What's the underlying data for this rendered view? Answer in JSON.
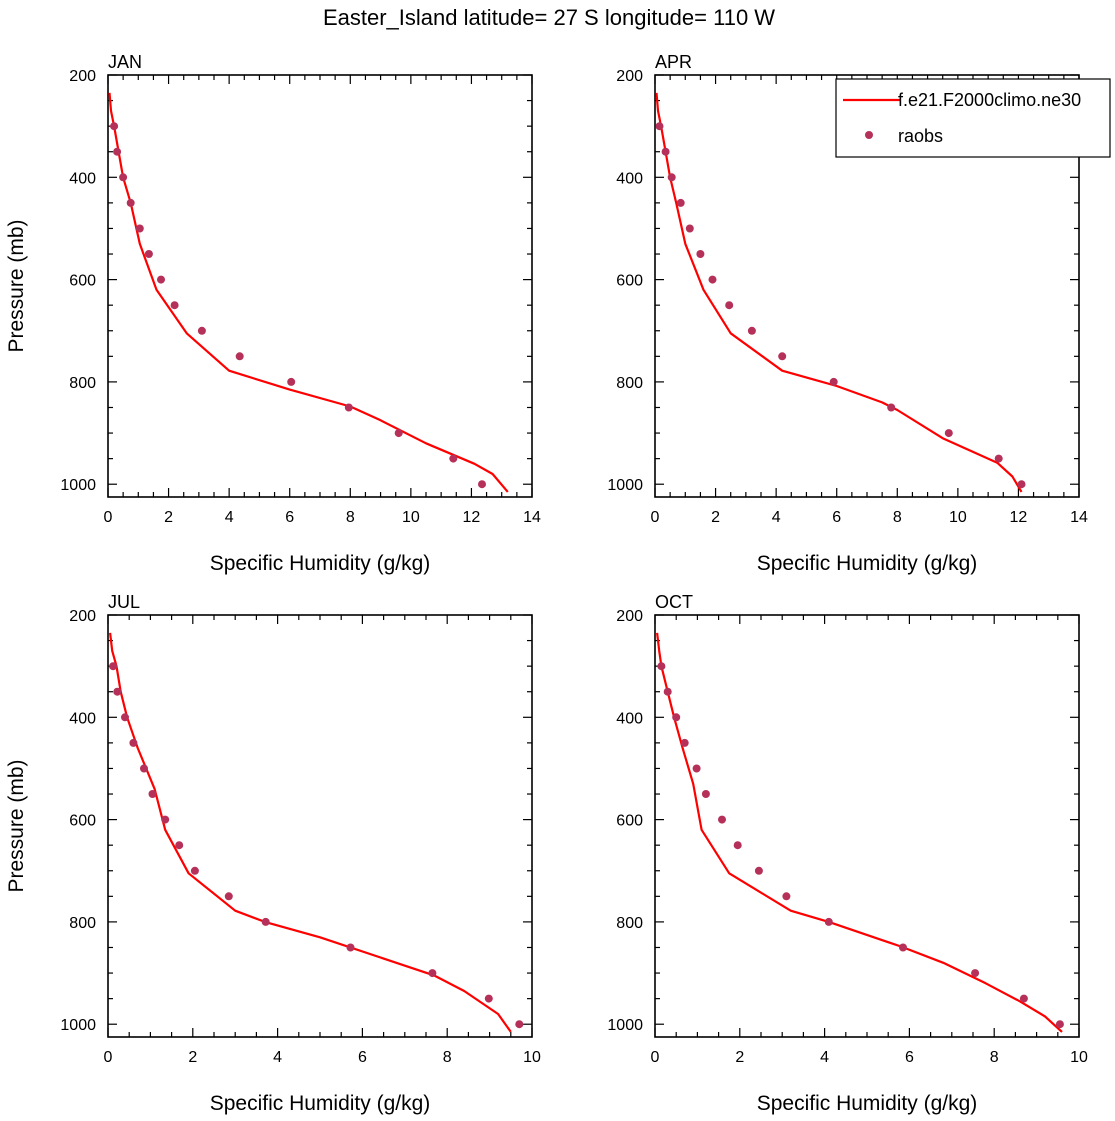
{
  "title": "Easter_Island  latitude= 27 S longitude= 110 W",
  "colors": {
    "model_line": "#ff0000",
    "raobs_marker": "#b5315a",
    "axes": "#000000"
  },
  "legend": {
    "placement": "top-right of APR panel",
    "entries": [
      {
        "label": "f.e21.F2000climo.ne30",
        "style": "line"
      },
      {
        "label": "raobs",
        "style": "marker"
      }
    ]
  },
  "chart_data": [
    {
      "type": "line",
      "panel_label": "JAN",
      "xlabel": "Specific Humidity (g/kg)",
      "ylabel": "Pressure (mb)",
      "xlim": [
        0,
        14
      ],
      "ylim": [
        1025,
        200
      ],
      "y_inverted": true,
      "xticks": [
        "0",
        "2",
        "4",
        "6",
        "8",
        "10",
        "12",
        "14"
      ],
      "yticks": [
        "200",
        "400",
        "600",
        "800",
        "1000"
      ],
      "series": [
        {
          "name": "f.e21.F2000climo.ne30",
          "kind": "line",
          "points": [
            [
              0.05,
              235
            ],
            [
              0.1,
              270
            ],
            [
              0.2,
              300
            ],
            [
              0.35,
              350
            ],
            [
              0.5,
              400
            ],
            [
              0.75,
              450
            ],
            [
              1.05,
              530
            ],
            [
              1.6,
              620
            ],
            [
              2.6,
              705
            ],
            [
              4.0,
              778
            ],
            [
              6.0,
              815
            ],
            [
              8.0,
              848
            ],
            [
              9.0,
              875
            ],
            [
              10.5,
              920
            ],
            [
              12.1,
              960
            ],
            [
              12.7,
              980
            ],
            [
              13.2,
              1015
            ]
          ]
        },
        {
          "name": "raobs",
          "kind": "scatter",
          "points": [
            [
              0.2,
              300
            ],
            [
              0.3,
              350
            ],
            [
              0.5,
              400
            ],
            [
              0.75,
              450
            ],
            [
              1.05,
              500
            ],
            [
              1.35,
              550
            ],
            [
              1.75,
              600
            ],
            [
              2.2,
              650
            ],
            [
              3.1,
              700
            ],
            [
              4.35,
              750
            ],
            [
              6.05,
              800
            ],
            [
              7.95,
              850
            ],
            [
              9.6,
              900
            ],
            [
              11.4,
              950
            ],
            [
              12.35,
              1000
            ]
          ]
        }
      ]
    },
    {
      "type": "line",
      "panel_label": "APR",
      "xlabel": "Specific Humidity (g/kg)",
      "ylabel": "",
      "xlim": [
        0,
        14
      ],
      "ylim": [
        1025,
        200
      ],
      "y_inverted": true,
      "xticks": [
        "0",
        "2",
        "4",
        "6",
        "8",
        "10",
        "12",
        "14"
      ],
      "yticks": [
        "200",
        "400",
        "600",
        "800",
        "1000"
      ],
      "series": [
        {
          "name": "f.e21.F2000climo.ne30",
          "kind": "line",
          "points": [
            [
              0.05,
              235
            ],
            [
              0.1,
              270
            ],
            [
              0.2,
              300
            ],
            [
              0.35,
              350
            ],
            [
              0.5,
              400
            ],
            [
              0.7,
              450
            ],
            [
              1.0,
              530
            ],
            [
              1.6,
              620
            ],
            [
              2.5,
              705
            ],
            [
              4.2,
              778
            ],
            [
              6.0,
              808
            ],
            [
              7.5,
              840
            ],
            [
              8.0,
              855
            ],
            [
              9.5,
              910
            ],
            [
              11.3,
              958
            ],
            [
              11.8,
              985
            ],
            [
              12.1,
              1015
            ]
          ]
        },
        {
          "name": "raobs",
          "kind": "scatter",
          "points": [
            [
              0.15,
              300
            ],
            [
              0.35,
              350
            ],
            [
              0.55,
              400
            ],
            [
              0.85,
              450
            ],
            [
              1.15,
              500
            ],
            [
              1.5,
              550
            ],
            [
              1.9,
              600
            ],
            [
              2.45,
              650
            ],
            [
              3.2,
              700
            ],
            [
              4.2,
              750
            ],
            [
              5.9,
              800
            ],
            [
              7.8,
              850
            ],
            [
              9.7,
              900
            ],
            [
              11.35,
              950
            ],
            [
              12.1,
              1000
            ]
          ]
        }
      ]
    },
    {
      "type": "line",
      "panel_label": "JUL",
      "xlabel": "Specific Humidity (g/kg)",
      "ylabel": "Pressure (mb)",
      "xlim": [
        0,
        10
      ],
      "ylim": [
        1025,
        200
      ],
      "y_inverted": true,
      "xticks": [
        "0",
        "2",
        "4",
        "6",
        "8",
        "10"
      ],
      "yticks": [
        "200",
        "400",
        "600",
        "800",
        "1000"
      ],
      "series": [
        {
          "name": "f.e21.F2000climo.ne30",
          "kind": "line",
          "points": [
            [
              0.05,
              235
            ],
            [
              0.1,
              270
            ],
            [
              0.2,
              300
            ],
            [
              0.3,
              350
            ],
            [
              0.45,
              400
            ],
            [
              0.7,
              460
            ],
            [
              1.1,
              540
            ],
            [
              1.35,
              620
            ],
            [
              1.9,
              705
            ],
            [
              3.0,
              778
            ],
            [
              3.7,
              800
            ],
            [
              5.0,
              830
            ],
            [
              6.8,
              880
            ],
            [
              7.7,
              905
            ],
            [
              8.4,
              935
            ],
            [
              9.2,
              980
            ],
            [
              9.5,
              1015
            ]
          ]
        },
        {
          "name": "raobs",
          "kind": "scatter",
          "points": [
            [
              0.12,
              300
            ],
            [
              0.22,
              350
            ],
            [
              0.4,
              400
            ],
            [
              0.6,
              450
            ],
            [
              0.85,
              500
            ],
            [
              1.05,
              550
            ],
            [
              1.35,
              600
            ],
            [
              1.68,
              650
            ],
            [
              2.05,
              700
            ],
            [
              2.85,
              750
            ],
            [
              3.72,
              800
            ],
            [
              5.72,
              850
            ],
            [
              7.65,
              900
            ],
            [
              8.98,
              950
            ],
            [
              9.7,
              1000
            ]
          ]
        }
      ]
    },
    {
      "type": "line",
      "panel_label": "OCT",
      "xlabel": "Specific Humidity (g/kg)",
      "ylabel": "",
      "xlim": [
        0,
        10
      ],
      "ylim": [
        1025,
        200
      ],
      "y_inverted": true,
      "xticks": [
        "0",
        "2",
        "4",
        "6",
        "8",
        "10"
      ],
      "yticks": [
        "200",
        "400",
        "600",
        "800",
        "1000"
      ],
      "series": [
        {
          "name": "f.e21.F2000climo.ne30",
          "kind": "line",
          "points": [
            [
              0.05,
              235
            ],
            [
              0.1,
              270
            ],
            [
              0.15,
              300
            ],
            [
              0.3,
              350
            ],
            [
              0.45,
              400
            ],
            [
              0.65,
              460
            ],
            [
              0.9,
              530
            ],
            [
              1.1,
              620
            ],
            [
              1.75,
              705
            ],
            [
              3.2,
              778
            ],
            [
              4.1,
              800
            ],
            [
              5.8,
              848
            ],
            [
              6.8,
              880
            ],
            [
              7.8,
              920
            ],
            [
              8.6,
              955
            ],
            [
              9.2,
              985
            ],
            [
              9.6,
              1015
            ]
          ]
        },
        {
          "name": "raobs",
          "kind": "scatter",
          "points": [
            [
              0.15,
              300
            ],
            [
              0.3,
              350
            ],
            [
              0.5,
              400
            ],
            [
              0.7,
              450
            ],
            [
              0.98,
              500
            ],
            [
              1.2,
              550
            ],
            [
              1.58,
              600
            ],
            [
              1.95,
              650
            ],
            [
              2.45,
              700
            ],
            [
              3.1,
              750
            ],
            [
              4.1,
              800
            ],
            [
              5.85,
              850
            ],
            [
              7.55,
              900
            ],
            [
              8.7,
              950
            ],
            [
              9.55,
              1000
            ]
          ]
        }
      ]
    }
  ]
}
